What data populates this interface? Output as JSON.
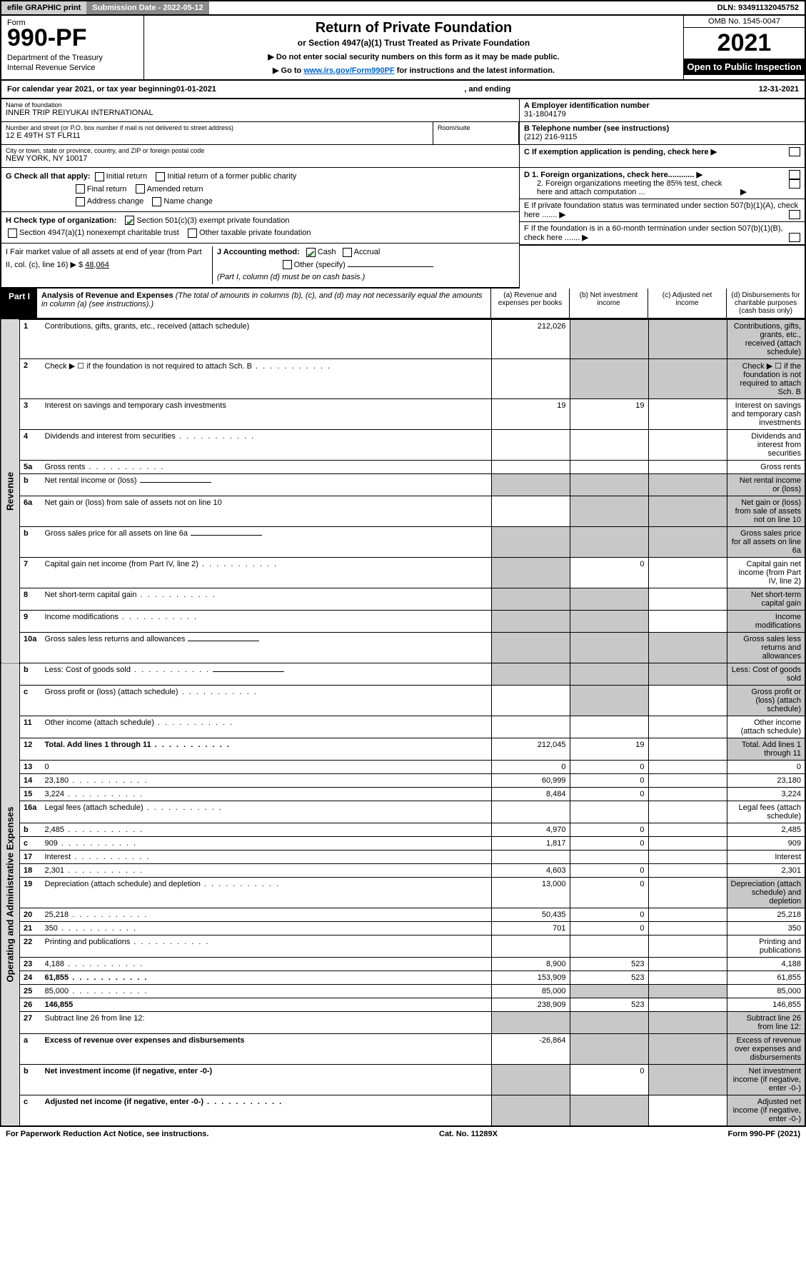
{
  "topbar": {
    "efile": "efile GRAPHIC print",
    "submission": "Submission Date - 2022-05-12",
    "dln": "DLN: 93491132045752"
  },
  "header": {
    "form_label": "Form",
    "form_num": "990-PF",
    "dept": "Department of the Treasury",
    "irs": "Internal Revenue Service",
    "title": "Return of Private Foundation",
    "subtitle": "or Section 4947(a)(1) Trust Treated as Private Foundation",
    "note1": "▶ Do not enter social security numbers on this form as it may be made public.",
    "note2_prefix": "▶ Go to ",
    "note2_link": "www.irs.gov/Form990PF",
    "note2_suffix": " for instructions and the latest information.",
    "omb": "OMB No. 1545-0047",
    "year": "2021",
    "open": "Open to Public Inspection"
  },
  "cal": {
    "prefix": "For calendar year 2021, or tax year beginning ",
    "begin": "01-01-2021",
    "mid": ", and ending ",
    "end": "12-31-2021"
  },
  "org": {
    "name_label": "Name of foundation",
    "name": "INNER TRIP REIYUKAI INTERNATIONAL",
    "addr_label": "Number and street (or P.O. box number if mail is not delivered to street address)",
    "addr": "12 E 49TH ST FLR11",
    "room_label": "Room/suite",
    "city_label": "City or town, state or province, country, and ZIP or foreign postal code",
    "city": "NEW YORK, NY  10017",
    "ein_label": "A Employer identification number",
    "ein": "31-1804179",
    "phone_label": "B Telephone number (see instructions)",
    "phone": "(212) 216-9115",
    "c_label": "C If exemption application is pending, check here"
  },
  "checks": {
    "g_label": "G Check all that apply:",
    "g_opts": [
      "Initial return",
      "Initial return of a former public charity",
      "Final return",
      "Amended return",
      "Address change",
      "Name change"
    ],
    "h_label": "H Check type of organization:",
    "h1": "Section 501(c)(3) exempt private foundation",
    "h2": "Section 4947(a)(1) nonexempt charitable trust",
    "h3": "Other taxable private foundation",
    "i_label": "I Fair market value of all assets at end of year (from Part II, col. (c), line 16) ▶ $",
    "i_val": "48,064",
    "j_label": "J Accounting method:",
    "j_cash": "Cash",
    "j_accrual": "Accrual",
    "j_other": "Other (specify)",
    "j_note": "(Part I, column (d) must be on cash basis.)",
    "d1": "D 1. Foreign organizations, check here............",
    "d2": "2. Foreign organizations meeting the 85% test, check here and attach computation ...",
    "e_label": "E  If private foundation status was terminated under section 507(b)(1)(A), check here .......",
    "f_label": "F  If the foundation is in a 60-month termination under section 507(b)(1)(B), check here ......."
  },
  "part1": {
    "label": "Part I",
    "title": "Analysis of Revenue and Expenses",
    "desc": " (The total of amounts in columns (b), (c), and (d) may not necessarily equal the amounts in column (a) (see instructions).)",
    "cols": {
      "a": "(a)   Revenue and expenses per books",
      "b": "(b)   Net investment income",
      "c": "(c)   Adjusted net income",
      "d": "(d)  Disbursements for charitable purposes (cash basis only)"
    }
  },
  "side_labels": {
    "rev": "Revenue",
    "exp": "Operating and Administrative Expenses"
  },
  "rows": [
    {
      "n": "1",
      "d": "Contributions, gifts, grants, etc., received (attach schedule)",
      "a": "212,026",
      "shaded": [
        "b",
        "c",
        "d"
      ]
    },
    {
      "n": "2",
      "d": "Check ▶ ☐ if the foundation is not required to attach Sch. B",
      "dots": true,
      "shaded": [
        "b",
        "c",
        "d"
      ]
    },
    {
      "n": "3",
      "d": "Interest on savings and temporary cash investments",
      "a": "19",
      "b": "19"
    },
    {
      "n": "4",
      "d": "Dividends and interest from securities",
      "dots": true
    },
    {
      "n": "5a",
      "d": "Gross rents",
      "dots": true
    },
    {
      "n": "b",
      "d": "Net rental income or (loss)",
      "inline": true,
      "shaded": [
        "a",
        "b",
        "c",
        "d"
      ]
    },
    {
      "n": "6a",
      "d": "Net gain or (loss) from sale of assets not on line 10",
      "shaded": [
        "b",
        "c",
        "d"
      ]
    },
    {
      "n": "b",
      "d": "Gross sales price for all assets on line 6a",
      "inline": true,
      "shaded": [
        "a",
        "b",
        "c",
        "d"
      ]
    },
    {
      "n": "7",
      "d": "Capital gain net income (from Part IV, line 2)",
      "dots": true,
      "b": "0",
      "shaded": [
        "a"
      ]
    },
    {
      "n": "8",
      "d": "Net short-term capital gain",
      "dots": true,
      "shaded": [
        "a",
        "b",
        "d"
      ]
    },
    {
      "n": "9",
      "d": "Income modifications",
      "dots": true,
      "shaded": [
        "a",
        "b",
        "d"
      ]
    },
    {
      "n": "10a",
      "d": "Gross sales less returns and allowances",
      "inline": true,
      "shaded": [
        "a",
        "b",
        "c",
        "d"
      ]
    },
    {
      "n": "b",
      "d": "Less: Cost of goods sold",
      "dots": true,
      "inline": true,
      "shaded": [
        "a",
        "b",
        "c",
        "d"
      ]
    },
    {
      "n": "c",
      "d": "Gross profit or (loss) (attach schedule)",
      "dots": true,
      "shaded": [
        "b",
        "d"
      ]
    },
    {
      "n": "11",
      "d": "Other income (attach schedule)",
      "dots": true
    },
    {
      "n": "12",
      "d": "Total. Add lines 1 through 11",
      "bold": true,
      "dots": true,
      "a": "212,045",
      "b": "19",
      "shaded": [
        "d"
      ]
    },
    {
      "n": "13",
      "d": "0",
      "a": "0",
      "b": "0"
    },
    {
      "n": "14",
      "d": "23,180",
      "dots": true,
      "a": "60,999",
      "b": "0"
    },
    {
      "n": "15",
      "d": "3,224",
      "dots": true,
      "a": "8,484",
      "b": "0"
    },
    {
      "n": "16a",
      "d": "Legal fees (attach schedule)",
      "dots": true
    },
    {
      "n": "b",
      "d": "2,485",
      "dots": true,
      "a": "4,970",
      "b": "0"
    },
    {
      "n": "c",
      "d": "909",
      "dots": true,
      "a": "1,817",
      "b": "0"
    },
    {
      "n": "17",
      "d": "Interest",
      "dots": true
    },
    {
      "n": "18",
      "d": "2,301",
      "dots": true,
      "a": "4,603",
      "b": "0"
    },
    {
      "n": "19",
      "d": "Depreciation (attach schedule) and depletion",
      "dots": true,
      "a": "13,000",
      "b": "0",
      "shaded": [
        "d"
      ]
    },
    {
      "n": "20",
      "d": "25,218",
      "dots": true,
      "a": "50,435",
      "b": "0"
    },
    {
      "n": "21",
      "d": "350",
      "dots": true,
      "a": "701",
      "b": "0"
    },
    {
      "n": "22",
      "d": "Printing and publications",
      "dots": true
    },
    {
      "n": "23",
      "d": "4,188",
      "dots": true,
      "a": "8,900",
      "b": "523"
    },
    {
      "n": "24",
      "d": "61,855",
      "bold": true,
      "dots": true,
      "a": "153,909",
      "b": "523"
    },
    {
      "n": "25",
      "d": "85,000",
      "dots": true,
      "a": "85,000",
      "shaded": [
        "b",
        "c"
      ]
    },
    {
      "n": "26",
      "d": "146,855",
      "bold": true,
      "a": "238,909",
      "b": "523"
    },
    {
      "n": "27",
      "d": "Subtract line 26 from line 12:",
      "shaded": [
        "a",
        "b",
        "c",
        "d"
      ]
    },
    {
      "n": "a",
      "d": "Excess of revenue over expenses and disbursements",
      "bold": true,
      "a": "-26,864",
      "shaded": [
        "b",
        "c",
        "d"
      ]
    },
    {
      "n": "b",
      "d": "Net investment income (if negative, enter -0-)",
      "bold": true,
      "b": "0",
      "shaded": [
        "a",
        "c",
        "d"
      ]
    },
    {
      "n": "c",
      "d": "Adjusted net income (if negative, enter -0-)",
      "bold": true,
      "dots": true,
      "shaded": [
        "a",
        "b",
        "d"
      ]
    }
  ],
  "footer": {
    "left": "For Paperwork Reduction Act Notice, see instructions.",
    "mid": "Cat. No. 11289X",
    "right": "Form 990-PF (2021)"
  }
}
